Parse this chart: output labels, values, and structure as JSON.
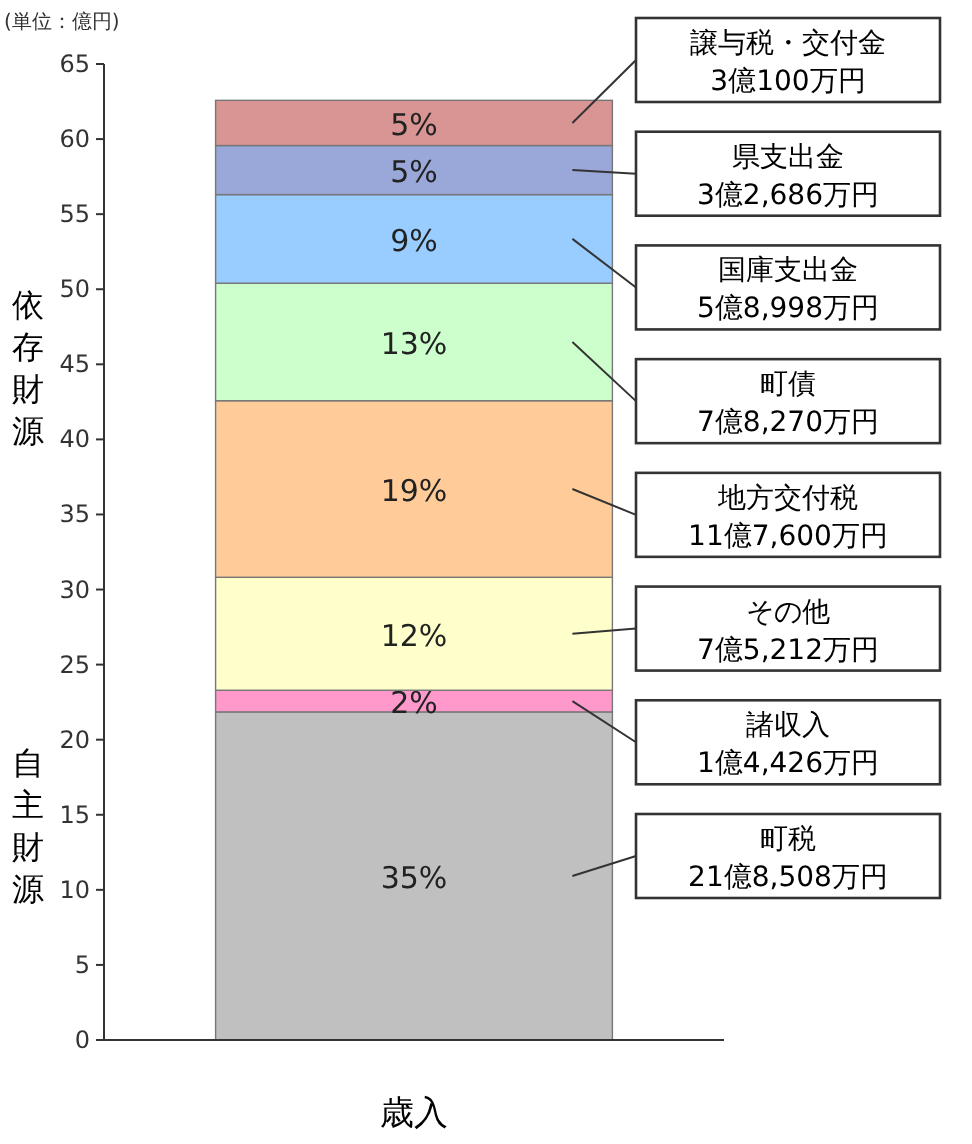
{
  "chart_data": {
    "type": "bar",
    "stacked": true,
    "ylabel": "(単位：億円)",
    "categories": [
      "歳入"
    ],
    "ylim": [
      0,
      65
    ],
    "yticks": [
      0,
      5,
      10,
      15,
      20,
      25,
      30,
      35,
      40,
      45,
      50,
      55,
      60,
      65
    ],
    "series": [
      {
        "name": "町税",
        "color": "#c0c0c0",
        "values": [
          21.8508
        ]
      },
      {
        "name": "諸収入",
        "color": "#ff99cc",
        "values": [
          1.4426
        ]
      },
      {
        "name": "その他",
        "color": "#ffffcc",
        "values": [
          7.5212
        ]
      },
      {
        "name": "地方交付税",
        "color": "#ffcc99",
        "values": [
          11.76
        ]
      },
      {
        "name": "町債",
        "color": "#ccffcc",
        "values": [
          7.827
        ]
      },
      {
        "name": "国庫支出金",
        "color": "#99ccff",
        "values": [
          5.8998
        ]
      },
      {
        "name": "県支出金",
        "color": "#99a8d8",
        "values": [
          3.2686
        ]
      },
      {
        "name": "譲与税・交付金",
        "color": "#d99594",
        "values": [
          3.01
        ]
      }
    ],
    "annotations": [
      "35%",
      "2%",
      "12%",
      "19%",
      "13%",
      "9%",
      "5%",
      "5%",
      "21億8,508万円",
      "1億4,426万円",
      "7億5,212万円",
      "11億7,600万円",
      "7億8,270万円",
      "5億8,998万円",
      "3億2,686万円",
      "3億100万円",
      "依存財源",
      "自主財源"
    ]
  }
}
